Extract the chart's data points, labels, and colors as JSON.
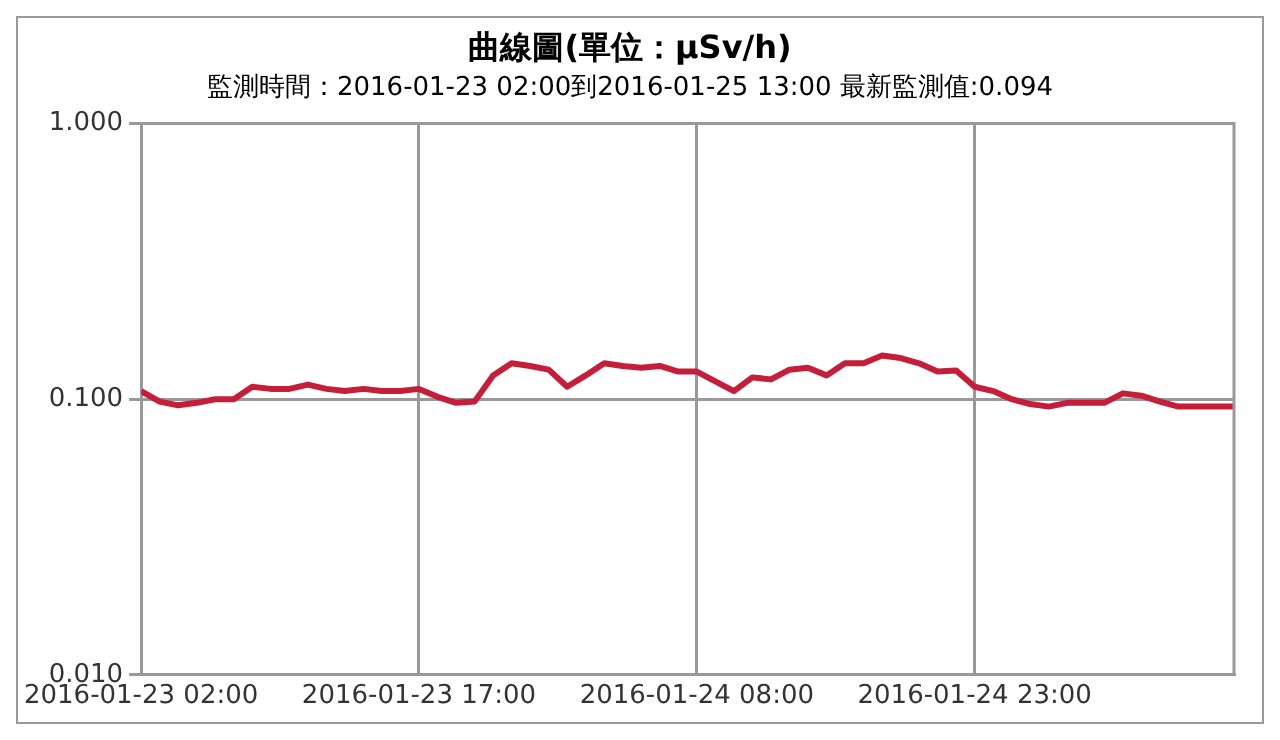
{
  "chart_data": {
    "type": "line",
    "title": "曲線圖(單位：μSv/h)",
    "subtitle": "監測時間：2016-01-23 02:00到2016-01-25 13:00 最新監測值:0.094",
    "log": "y",
    "grid": true,
    "legend": false,
    "marker": "none",
    "line_style": "solid",
    "xlim": [
      "2016-01-23T02:00",
      "2016-01-25T13:00"
    ],
    "xticks": [
      {
        "value": "2016-01-23T02:00",
        "label": "2016-01-23 02:00"
      },
      {
        "value": "2016-01-23T17:00",
        "label": "2016-01-23 17:00"
      },
      {
        "value": "2016-01-24T08:00",
        "label": "2016-01-24 08:00"
      },
      {
        "value": "2016-01-24T23:00",
        "label": "2016-01-24 23:00"
      }
    ],
    "ylim": [
      0.01,
      1
    ],
    "yticks": [
      {
        "value": 0.01,
        "label": "0.010"
      },
      {
        "value": 0.1,
        "label": "0.100"
      },
      {
        "value": 1,
        "label": "1.000"
      }
    ],
    "x": [
      "2016-01-23T02:00",
      "2016-01-23T03:00",
      "2016-01-23T04:00",
      "2016-01-23T05:00",
      "2016-01-23T06:00",
      "2016-01-23T07:00",
      "2016-01-23T08:00",
      "2016-01-23T09:00",
      "2016-01-23T10:00",
      "2016-01-23T11:00",
      "2016-01-23T12:00",
      "2016-01-23T13:00",
      "2016-01-23T14:00",
      "2016-01-23T15:00",
      "2016-01-23T16:00",
      "2016-01-23T17:00",
      "2016-01-23T18:00",
      "2016-01-23T19:00",
      "2016-01-23T20:00",
      "2016-01-23T21:00",
      "2016-01-23T22:00",
      "2016-01-23T23:00",
      "2016-01-24T00:00",
      "2016-01-24T01:00",
      "2016-01-24T02:00",
      "2016-01-24T03:00",
      "2016-01-24T04:00",
      "2016-01-24T05:00",
      "2016-01-24T06:00",
      "2016-01-24T07:00",
      "2016-01-24T08:00",
      "2016-01-24T09:00",
      "2016-01-24T10:00",
      "2016-01-24T11:00",
      "2016-01-24T12:00",
      "2016-01-24T13:00",
      "2016-01-24T14:00",
      "2016-01-24T15:00",
      "2016-01-24T16:00",
      "2016-01-24T17:00",
      "2016-01-24T18:00",
      "2016-01-24T19:00",
      "2016-01-24T20:00",
      "2016-01-24T21:00",
      "2016-01-24T22:00",
      "2016-01-24T23:00",
      "2016-01-25T00:00",
      "2016-01-25T01:00",
      "2016-01-25T02:00",
      "2016-01-25T03:00",
      "2016-01-25T04:00",
      "2016-01-25T05:00",
      "2016-01-25T06:00",
      "2016-01-25T07:00",
      "2016-01-25T08:00",
      "2016-01-25T09:00",
      "2016-01-25T10:00",
      "2016-01-25T11:00",
      "2016-01-25T12:00",
      "2016-01-25T13:00"
    ],
    "series": [
      {
        "color": "#c41e3a",
        "values": [
          0.107,
          0.098,
          0.095,
          0.097,
          0.1,
          0.1,
          0.111,
          0.109,
          0.109,
          0.113,
          0.109,
          0.107,
          0.109,
          0.107,
          0.107,
          0.109,
          0.102,
          0.097,
          0.098,
          0.122,
          0.135,
          0.132,
          0.128,
          0.111,
          0.122,
          0.135,
          0.132,
          0.13,
          0.132,
          0.126,
          0.126,
          0.116,
          0.107,
          0.12,
          0.118,
          0.128,
          0.13,
          0.122,
          0.135,
          0.135,
          0.144,
          0.141,
          0.135,
          0.126,
          0.127,
          0.111,
          0.107,
          0.1,
          0.096,
          0.094,
          0.097,
          0.097,
          0.097,
          0.105,
          0.103,
          0.098,
          0.094,
          0.094,
          0.094,
          0.094
        ]
      }
    ]
  }
}
